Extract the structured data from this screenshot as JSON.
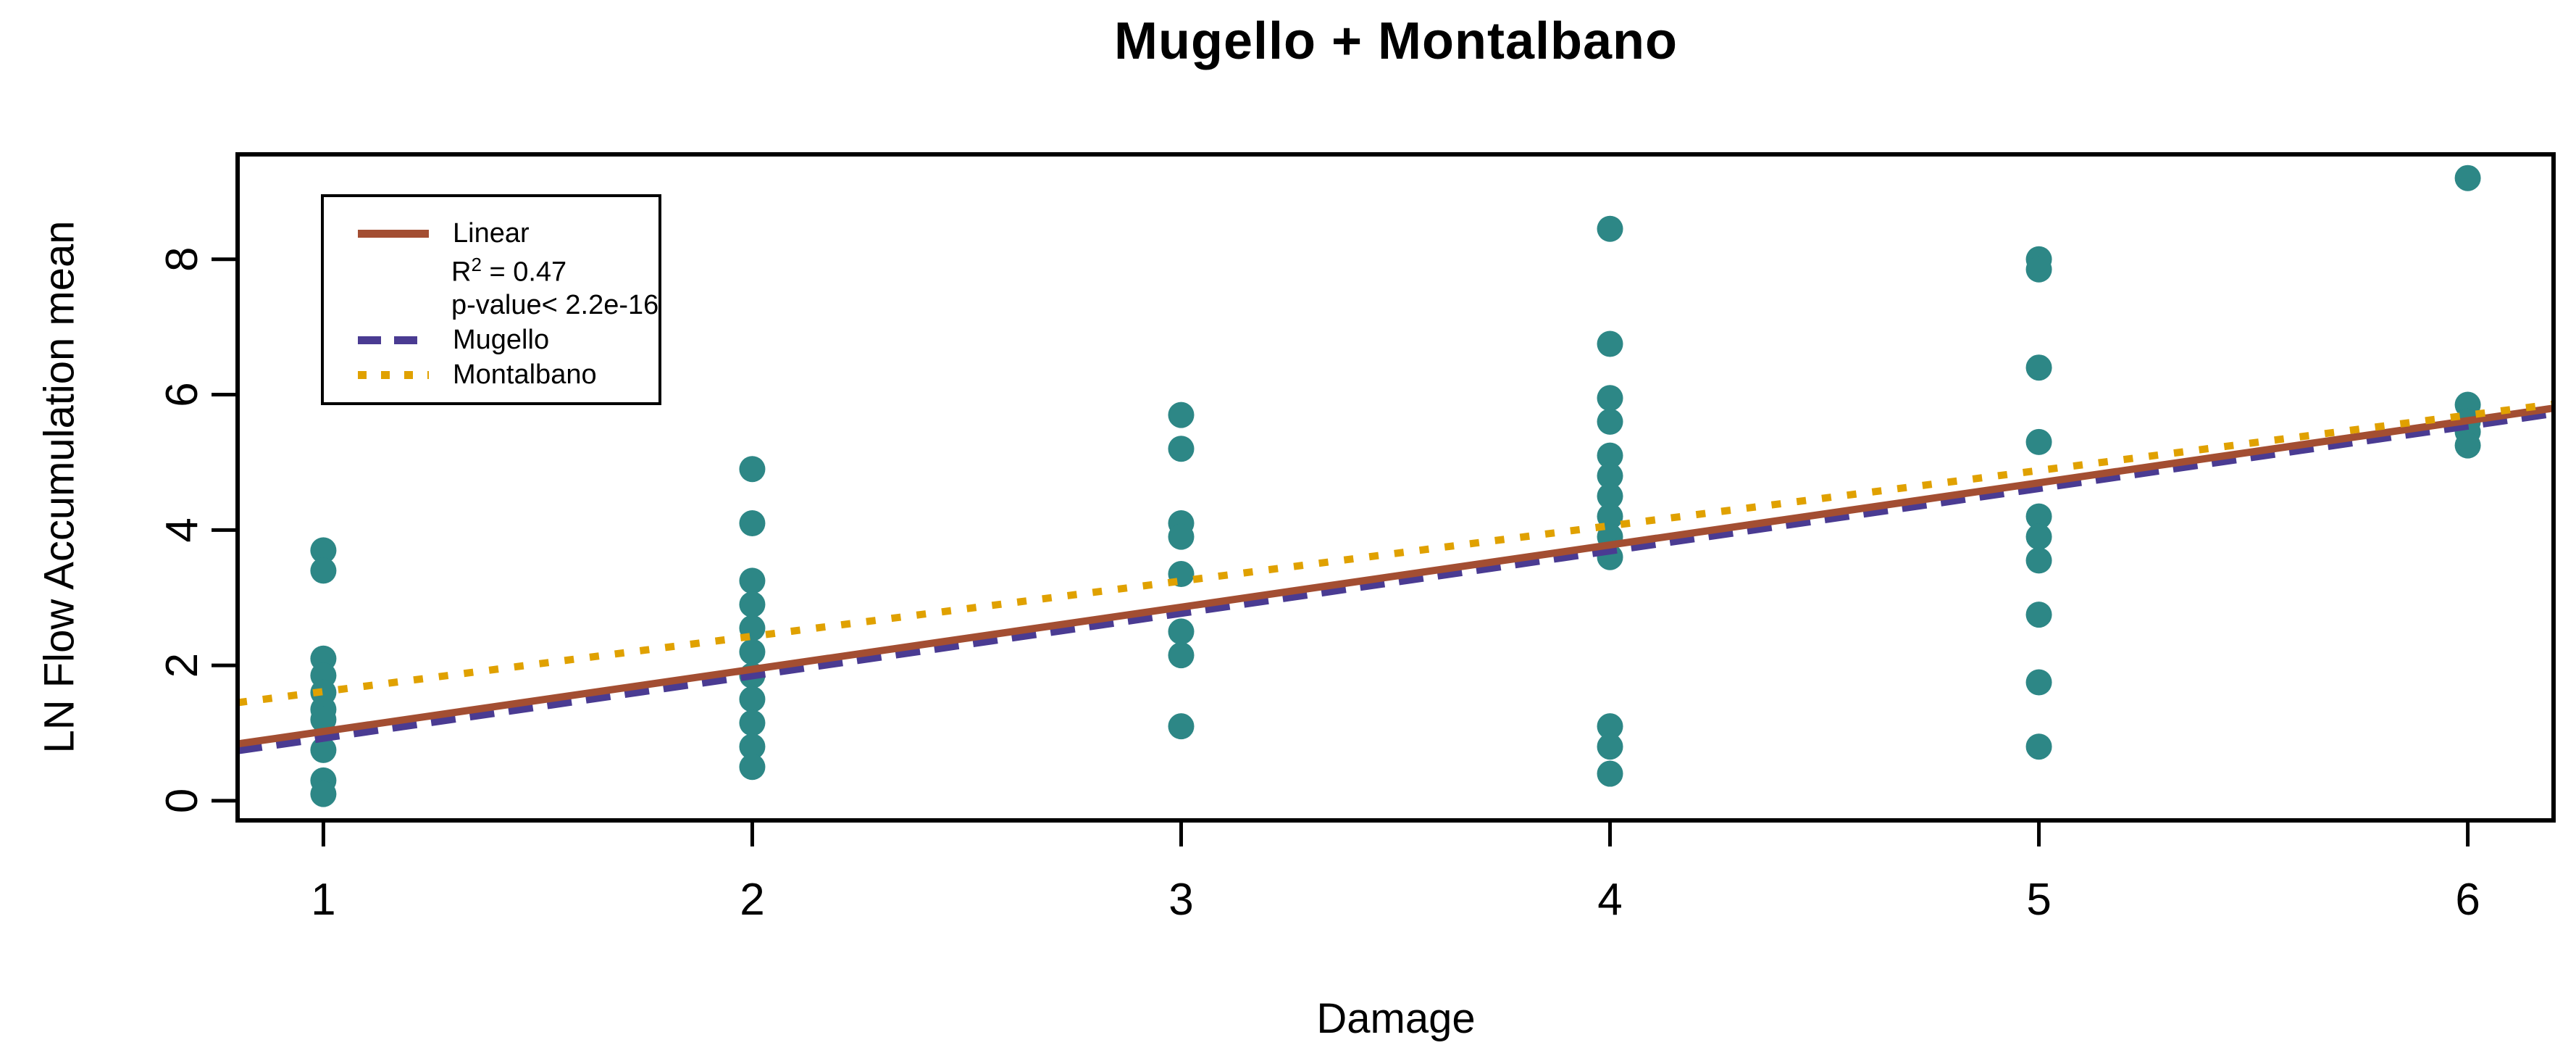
{
  "chart_data": {
    "type": "scatter",
    "title": "Mugello + Montalbano",
    "xlabel": "Damage",
    "ylabel": "LN Flow Accumulation mean",
    "xlim": [
      0.8,
      6.2
    ],
    "ylim": [
      -0.29,
      9.55
    ],
    "x_ticks": [
      "1",
      "2",
      "3",
      "4",
      "5",
      "6"
    ],
    "y_ticks": [
      "0",
      "2",
      "4",
      "6",
      "8"
    ],
    "grid": false,
    "point_color": "#2D8786",
    "axis_color": "#000000",
    "points": [
      {
        "x": 1,
        "ys": [
          3.7,
          3.4,
          2.1,
          1.85,
          1.6,
          1.35,
          1.2,
          0.75,
          0.3,
          0.1
        ]
      },
      {
        "x": 2,
        "ys": [
          4.9,
          4.1,
          3.25,
          2.9,
          2.55,
          2.2,
          1.85,
          1.5,
          1.15,
          0.8,
          0.5
        ]
      },
      {
        "x": 3,
        "ys": [
          5.7,
          5.2,
          4.1,
          3.9,
          3.35,
          2.5,
          2.15,
          1.1
        ]
      },
      {
        "x": 4,
        "ys": [
          8.45,
          6.75,
          5.95,
          5.6,
          5.1,
          4.8,
          4.5,
          4.2,
          3.9,
          3.6,
          1.1,
          0.8,
          0.4
        ]
      },
      {
        "x": 5,
        "ys": [
          8.0,
          7.85,
          6.4,
          5.3,
          4.2,
          3.9,
          3.55,
          2.75,
          1.75,
          0.8
        ]
      },
      {
        "x": 6,
        "ys": [
          9.2,
          5.85,
          5.6,
          5.45,
          5.25
        ]
      }
    ],
    "lines": [
      {
        "name": "Mugello",
        "color": "#4A3B92",
        "dash": [
          34,
          20
        ],
        "x": [
          0.8,
          6.2
        ],
        "y": [
          0.74,
          5.72
        ]
      },
      {
        "name": "Linear",
        "color": "#A34E32",
        "dash": null,
        "x": [
          0.8,
          6.2
        ],
        "y": [
          0.84,
          5.8
        ]
      },
      {
        "name": "Montalbano",
        "color": "#E0A100",
        "dash": [
          13,
          22
        ],
        "x": [
          0.8,
          6.2
        ],
        "y": [
          1.45,
          5.86
        ]
      }
    ],
    "legend": {
      "position": "top-left",
      "entries": [
        {
          "label": "Linear",
          "style": "solid",
          "color": "#A34E32"
        },
        {
          "label": "Mugello",
          "style": "dashed",
          "color": "#4A3B92"
        },
        {
          "label": "Montalbano",
          "style": "dotted",
          "color": "#E0A100"
        }
      ],
      "r2_base": "R",
      "r2_sup": "2",
      "r2_rest": " = 0.47",
      "p_value": "p-value< 2.2e-16"
    }
  }
}
